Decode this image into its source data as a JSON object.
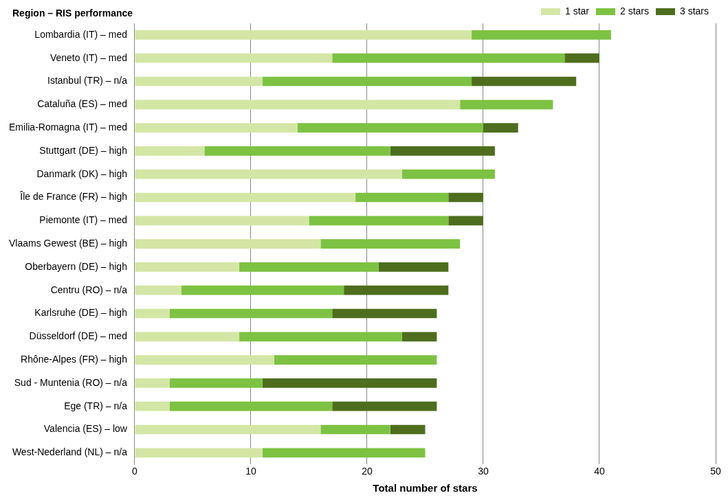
{
  "chart_data": {
    "type": "bar",
    "orientation": "horizontal",
    "stacked": true,
    "ylabel": "Region – RIS performance",
    "xlabel": "Total number of stars",
    "categories": [
      "Lombardia (IT) – med",
      "Veneto (IT) – med",
      "Istanbul (TR) – n/a",
      "Cataluña (ES) – med",
      "Emilia-Romagna (IT) – med",
      "Stuttgart (DE) – high",
      "Danmark (DK) – high",
      "Île de France (FR) – high",
      "Piemonte (IT) – med",
      "Vlaams Gewest (BE) – high",
      "Oberbayern (DE) – high",
      "Centru (RO) – n/a",
      "Karlsruhe (DE) – high",
      "Düsseldorf (DE) – med",
      "Rhône-Alpes (FR) – high",
      "Sud - Muntenia (RO) – n/a",
      "Ege (TR) – n/a",
      "Valencia (ES) – low",
      "West-Nederland (NL) – n/a"
    ],
    "series": [
      {
        "name": "1 star",
        "color": "#d4e6a5",
        "values": [
          29,
          17,
          11,
          28,
          14,
          6,
          23,
          19,
          15,
          16,
          9,
          4,
          3,
          9,
          12,
          3,
          3,
          16,
          11
        ]
      },
      {
        "name": "2 stars",
        "color": "#7dc242",
        "values": [
          12,
          20,
          18,
          8,
          16,
          16,
          8,
          8,
          12,
          12,
          12,
          14,
          14,
          14,
          14,
          8,
          14,
          6,
          14
        ]
      },
      {
        "name": "3 stars",
        "color": "#4e6e1e",
        "values": [
          0,
          3,
          9,
          0,
          3,
          9,
          0,
          3,
          3,
          0,
          6,
          9,
          9,
          3,
          0,
          15,
          9,
          3,
          0
        ]
      }
    ],
    "xlim": [
      0,
      50
    ],
    "xticks": [
      0,
      10,
      20,
      30,
      40,
      50
    ],
    "grid": "x",
    "legend": "top right"
  }
}
